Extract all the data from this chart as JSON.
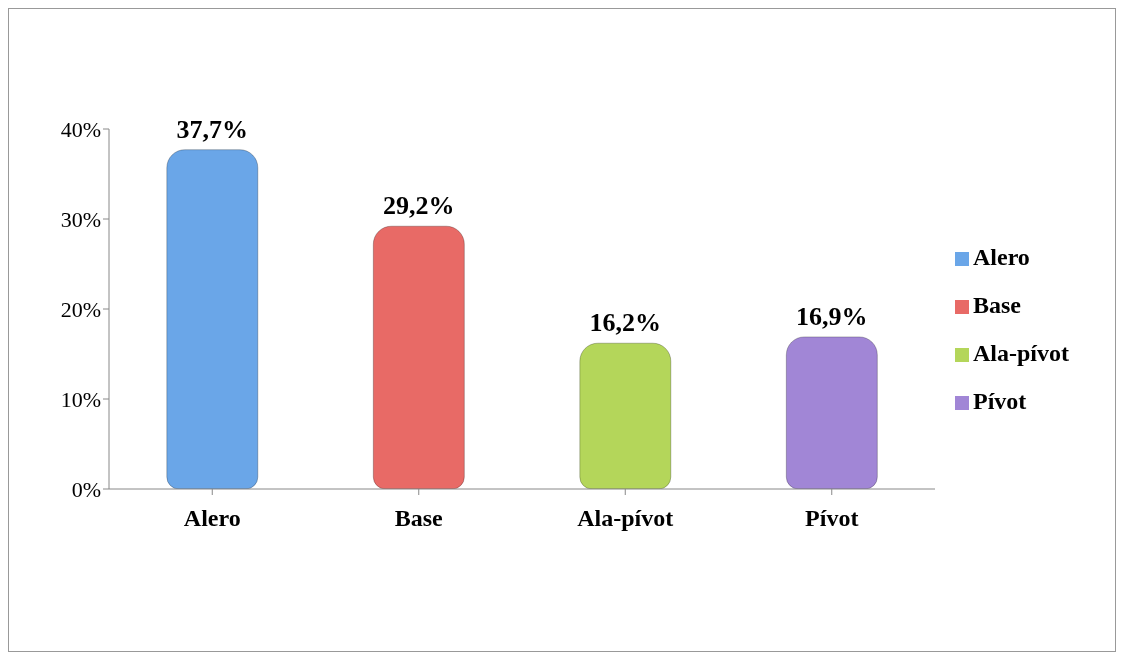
{
  "chart_data": {
    "type": "bar",
    "stacked": true,
    "categories": [
      "Alero",
      "Base",
      "Ala-pívot",
      "Pívot"
    ],
    "series": [
      {
        "name": "Alero",
        "color": "#6aa6e8",
        "values": [
          37.7,
          null,
          null,
          null
        ],
        "value_labels": [
          "37,7%",
          null,
          null,
          null
        ]
      },
      {
        "name": "Base",
        "color": "#e86a66",
        "values": [
          null,
          29.2,
          null,
          null
        ],
        "value_labels": [
          null,
          "29,2%",
          null,
          null
        ]
      },
      {
        "name": "Ala-pívot",
        "color": "#b4d65a",
        "values": [
          null,
          null,
          16.2,
          null
        ],
        "value_labels": [
          null,
          null,
          "16,2%",
          null
        ]
      },
      {
        "name": "Pívot",
        "color": "#a186d6",
        "values": [
          null,
          null,
          null,
          16.9
        ],
        "value_labels": [
          null,
          null,
          null,
          "16,9%"
        ]
      }
    ],
    "ylim": [
      0,
      40
    ],
    "yticks": [
      {
        "value": 0,
        "label": "0%"
      },
      {
        "value": 10,
        "label": "10%"
      },
      {
        "value": 20,
        "label": "20%"
      },
      {
        "value": 30,
        "label": "30%"
      },
      {
        "value": 40,
        "label": "40%"
      }
    ],
    "legend": "right"
  }
}
